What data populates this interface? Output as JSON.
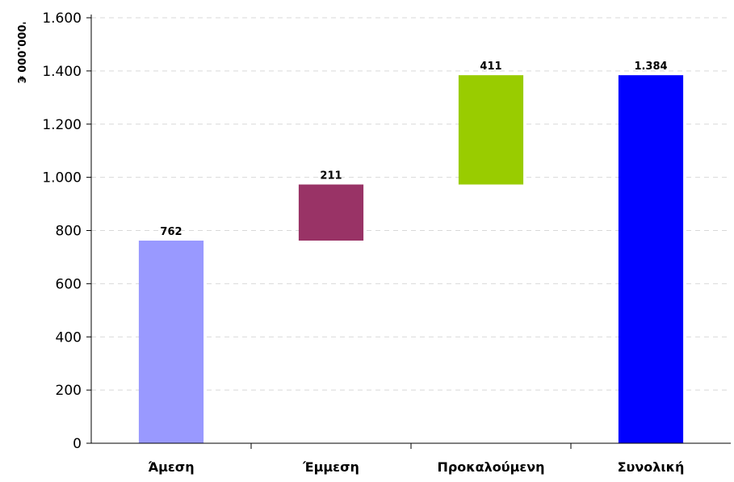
{
  "chart_data": {
    "type": "bar",
    "subtype": "waterfall",
    "title": "",
    "xlabel": "",
    "ylabel": "'000.000 €",
    "ylim": [
      0,
      1600
    ],
    "yticks": [
      0,
      200,
      400,
      600,
      800,
      1000,
      1200,
      1400,
      1600
    ],
    "ytick_labels": [
      "0",
      "200",
      "400",
      "600",
      "800",
      "1.000",
      "1.200",
      "1.400",
      "1.600"
    ],
    "grid": "horizontal dashed",
    "categories": [
      "Άμεση",
      "Έμμεση",
      "Προκαλούμενη",
      "Συνολική"
    ],
    "values": [
      762,
      211,
      411,
      1384
    ],
    "bases": [
      0,
      762,
      973,
      0
    ],
    "data_labels": [
      "762",
      "211",
      "411",
      "1.384"
    ],
    "colors": [
      "#9999ff",
      "#993366",
      "#99cc00",
      "#0000ff"
    ]
  }
}
